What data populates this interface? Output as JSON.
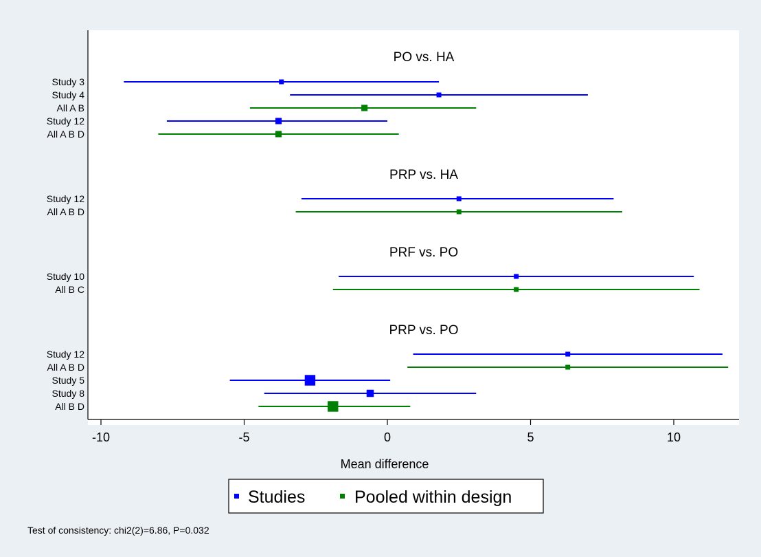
{
  "chart_data": {
    "type": "forest",
    "xlabel": "Mean difference",
    "xlim": [
      -10.4,
      12.0
    ],
    "xticks": [
      -10,
      -5,
      0,
      5,
      10
    ],
    "tick_labels": [
      "-10",
      "-5",
      "0",
      "5",
      "10"
    ],
    "grid": false,
    "colors": {
      "studies": "#0000ff",
      "pooled": "#008000"
    },
    "groups": [
      {
        "title": "PO vs. HA",
        "rows": [
          {
            "label": "Study 3",
            "kind": "studies",
            "estimate": -3.7,
            "lower": -9.2,
            "upper": 1.8,
            "weight": 1
          },
          {
            "label": "Study 4",
            "kind": "studies",
            "estimate": 1.8,
            "lower": -3.4,
            "upper": 7.0,
            "weight": 1
          },
          {
            "label": "All A B",
            "kind": "pooled",
            "estimate": -0.8,
            "lower": -4.8,
            "upper": 3.1,
            "weight": 1.3
          },
          {
            "label": "Study 12",
            "kind": "studies",
            "estimate": -3.8,
            "lower": -7.7,
            "upper": 0.0,
            "weight": 1.3
          },
          {
            "label": "All A B D",
            "kind": "pooled",
            "estimate": -3.8,
            "lower": -8.0,
            "upper": 0.4,
            "weight": 1.3
          }
        ]
      },
      {
        "title": "PRP vs. HA",
        "rows": [
          {
            "label": "Study 12",
            "kind": "studies",
            "estimate": 2.5,
            "lower": -3.0,
            "upper": 7.9,
            "weight": 1
          },
          {
            "label": "All A B D",
            "kind": "pooled",
            "estimate": 2.5,
            "lower": -3.2,
            "upper": 8.2,
            "weight": 1
          }
        ]
      },
      {
        "title": "PRF vs. PO",
        "rows": [
          {
            "label": "Study 10",
            "kind": "studies",
            "estimate": 4.5,
            "lower": -1.7,
            "upper": 10.7,
            "weight": 1
          },
          {
            "label": "All B C",
            "kind": "pooled",
            "estimate": 4.5,
            "lower": -1.9,
            "upper": 10.9,
            "weight": 1
          }
        ]
      },
      {
        "title": "PRP vs. PO",
        "rows": [
          {
            "label": "Study 12",
            "kind": "studies",
            "estimate": 6.3,
            "lower": 0.9,
            "upper": 11.7,
            "weight": 1
          },
          {
            "label": "All A B D",
            "kind": "pooled",
            "estimate": 6.3,
            "lower": 0.7,
            "upper": 11.9,
            "weight": 1
          },
          {
            "label": "Study 5",
            "kind": "studies",
            "estimate": -2.7,
            "lower": -5.5,
            "upper": 0.1,
            "weight": 2.2
          },
          {
            "label": "Study 8",
            "kind": "studies",
            "estimate": -0.6,
            "lower": -4.3,
            "upper": 3.1,
            "weight": 1.5
          },
          {
            "label": "All B D",
            "kind": "pooled",
            "estimate": -1.9,
            "lower": -4.5,
            "upper": 0.8,
            "weight": 2.2
          }
        ]
      }
    ],
    "legend": {
      "position": "bottom",
      "entries": [
        {
          "kind": "studies",
          "label": "Studies"
        },
        {
          "kind": "pooled",
          "label": "Pooled within design"
        }
      ]
    },
    "note": "Test of consistency: chi2(2)=6.86, P=0.032"
  }
}
